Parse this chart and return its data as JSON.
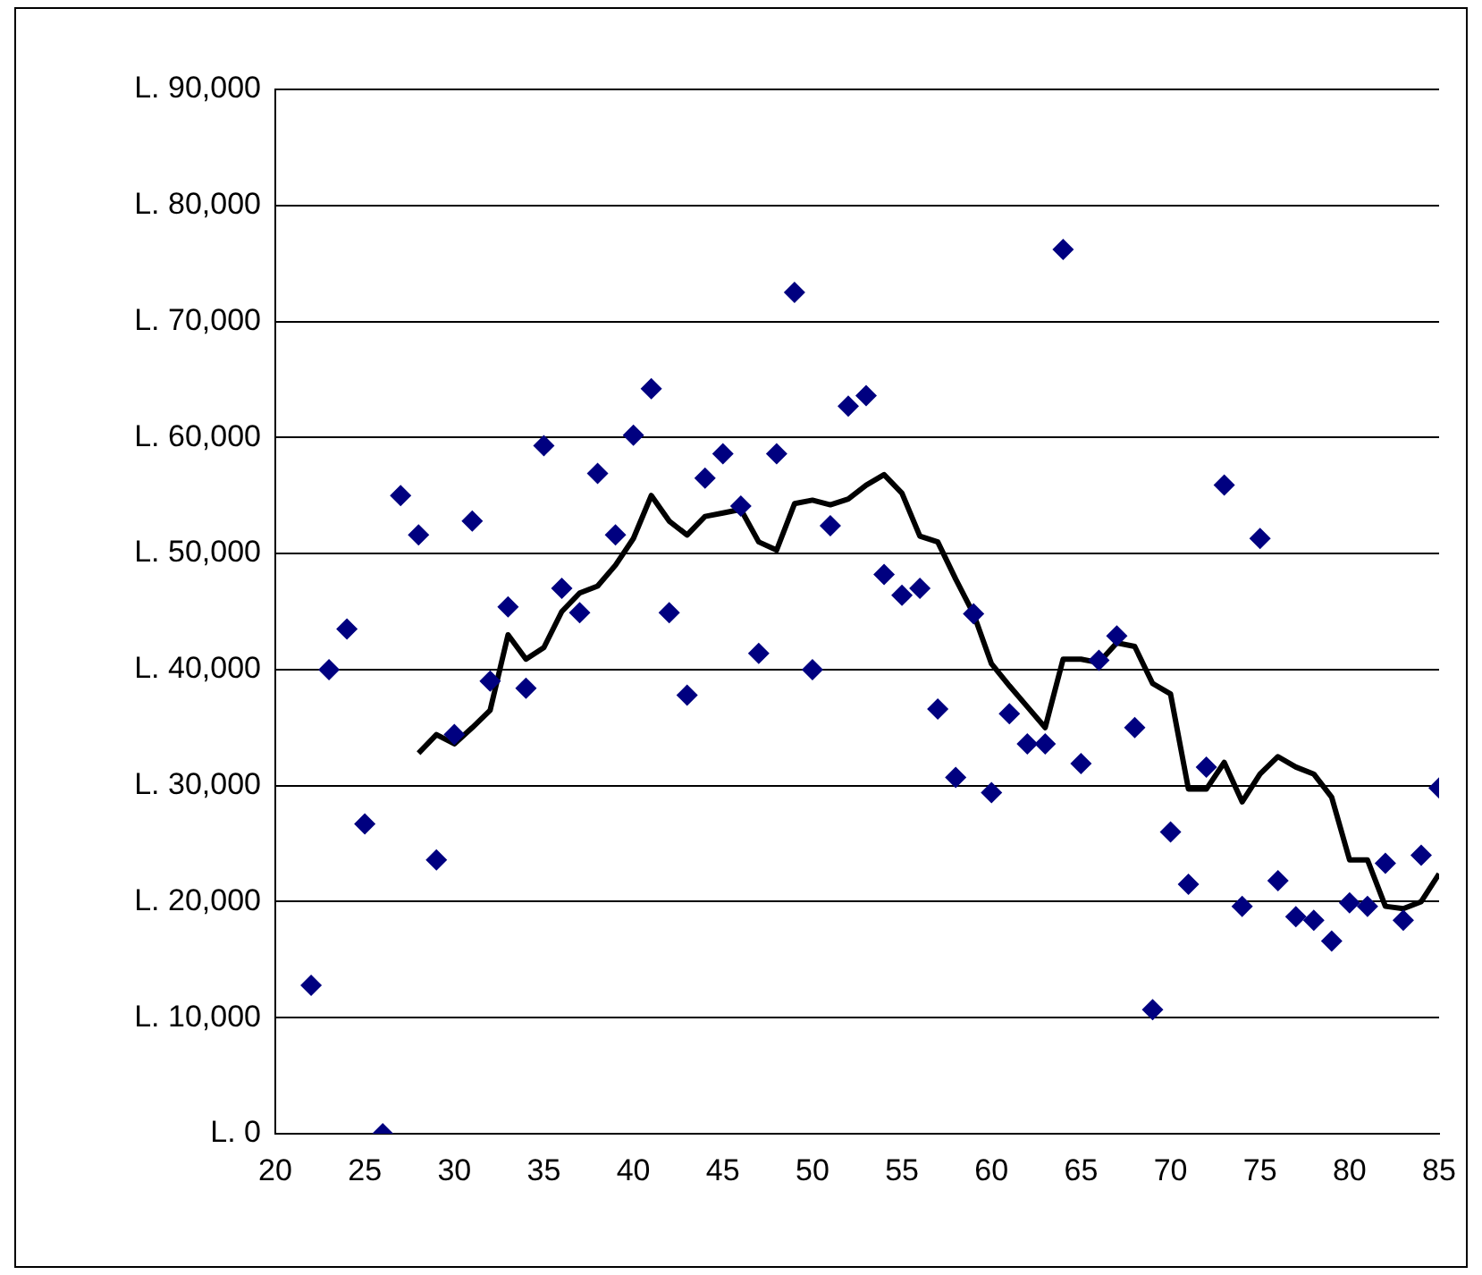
{
  "chart_data": {
    "type": "scatter",
    "xlim": [
      20,
      85
    ],
    "xticks": [
      20,
      25,
      30,
      35,
      40,
      45,
      50,
      55,
      60,
      65,
      70,
      75,
      80,
      85
    ],
    "ylim": [
      0,
      90000
    ],
    "yticks": [
      {
        "value": 0,
        "label": "L. 0"
      },
      {
        "value": 10000,
        "label": "L. 10,000"
      },
      {
        "value": 20000,
        "label": "L. 20,000"
      },
      {
        "value": 30000,
        "label": "L. 30,000"
      },
      {
        "value": 40000,
        "label": "L. 40,000"
      },
      {
        "value": 50000,
        "label": "L. 50,000"
      },
      {
        "value": 60000,
        "label": "L. 60,000"
      },
      {
        "value": 70000,
        "label": "L. 70,000"
      },
      {
        "value": 80000,
        "label": "L. 80,000"
      },
      {
        "value": 90000,
        "label": "L. 90,000"
      }
    ],
    "grid": "y",
    "legend": false,
    "series": [
      {
        "type": "scatter",
        "color": "#000080",
        "marker": "diamond",
        "x": [
          22,
          23,
          24,
          25,
          26,
          27,
          28,
          29,
          30,
          31,
          32,
          33,
          34,
          35,
          36,
          37,
          38,
          39,
          40,
          41,
          42,
          43,
          44,
          45,
          46,
          47,
          48,
          49,
          50,
          51,
          52,
          53,
          54,
          55,
          56,
          57,
          58,
          59,
          60,
          61,
          62,
          63,
          64,
          65,
          66,
          67,
          68,
          69,
          70,
          71,
          72,
          73,
          74,
          75,
          76,
          77,
          78,
          79,
          80,
          81,
          82,
          83,
          84,
          85
        ],
        "values": [
          12800,
          40000,
          43500,
          26700,
          0,
          55000,
          51600,
          23600,
          34400,
          52800,
          39000,
          45400,
          38400,
          59300,
          47000,
          44900,
          56900,
          51600,
          60200,
          64200,
          44900,
          37800,
          56500,
          58600,
          54100,
          41400,
          58600,
          72500,
          40000,
          52400,
          62700,
          63600,
          48200,
          46400,
          47000,
          36600,
          30700,
          44800,
          29400,
          36200,
          33600,
          33600,
          76200,
          31900,
          40800,
          42900,
          35000,
          10700,
          26000,
          21500,
          31600,
          55900,
          19600,
          51300,
          21800,
          18700,
          18400,
          16600,
          19900,
          19600,
          23300,
          18400,
          24000,
          29800
        ]
      },
      {
        "type": "line",
        "color": "#000000",
        "marker": "none",
        "line_style": "solid",
        "x": [
          28,
          29,
          30,
          31,
          32,
          33,
          34,
          35,
          36,
          37,
          38,
          39,
          40,
          41,
          42,
          43,
          44,
          45,
          46,
          47,
          48,
          49,
          50,
          51,
          52,
          53,
          54,
          55,
          56,
          57,
          58,
          59,
          60,
          61,
          62,
          63,
          64,
          65,
          66,
          67,
          68,
          69,
          70,
          71,
          72,
          73,
          74,
          75,
          76,
          77,
          78,
          79,
          80,
          81,
          82,
          83,
          84,
          85
        ],
        "values": [
          32800,
          34400,
          33600,
          35000,
          36500,
          43000,
          40900,
          41900,
          45000,
          46600,
          47200,
          49000,
          51300,
          55000,
          52800,
          51600,
          53200,
          53500,
          53800,
          51000,
          50300,
          54300,
          54600,
          54200,
          54700,
          55900,
          56800,
          55200,
          51500,
          51000,
          47800,
          44800,
          40500,
          38600,
          36800,
          35000,
          40900,
          40900,
          40600,
          42300,
          42000,
          38800,
          37900,
          29700,
          29700,
          32000,
          28600,
          31000,
          32500,
          31600,
          31000,
          29000,
          23600,
          23600,
          19600,
          19400,
          20000,
          22400
        ]
      }
    ]
  }
}
